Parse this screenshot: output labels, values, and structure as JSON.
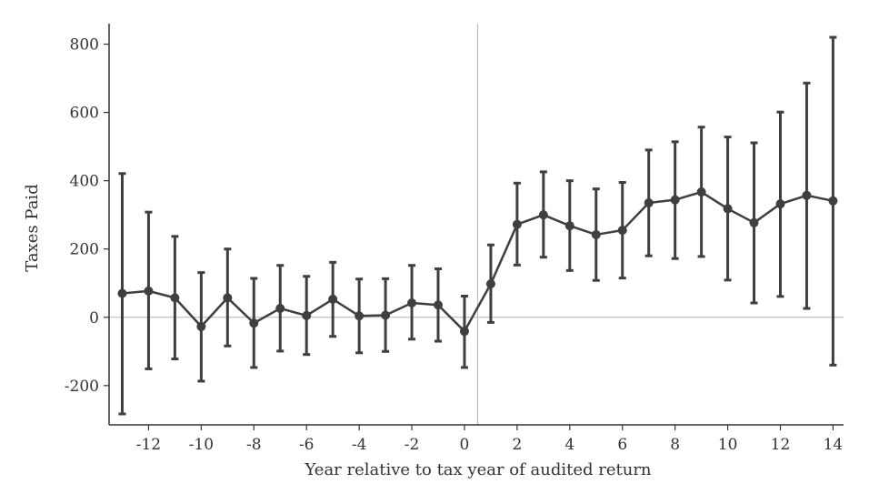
{
  "chart_data": {
    "type": "line",
    "title": "",
    "xlabel": "Year relative to tax year of audited return",
    "ylabel": "Taxes Paid",
    "xlim": [
      -13.5,
      14.4
    ],
    "ylim": [
      -315,
      860
    ],
    "x_ticks": [
      -12,
      -10,
      -8,
      -6,
      -4,
      -2,
      0,
      2,
      4,
      6,
      8,
      10,
      12,
      14
    ],
    "x_tick_labels": [
      "-12",
      "-10",
      "-8",
      "-6",
      "-4",
      "-2",
      "0",
      "2",
      "4",
      "6",
      "8",
      "10",
      "12",
      "14"
    ],
    "y_ticks": [
      -200,
      0,
      200,
      400,
      600,
      800
    ],
    "y_tick_labels": [
      "-200",
      "0",
      "200",
      "400",
      "600",
      "800"
    ],
    "reference_lines": {
      "vertical_x": 0.5,
      "horizontal_y": 0
    },
    "grid": false,
    "series": [
      {
        "x": [
          -13,
          -12,
          -11,
          -10,
          -9,
          -8,
          -7,
          -6,
          -5,
          -4,
          -3,
          -2,
          -1,
          0,
          1,
          2,
          3,
          4,
          5,
          6,
          7,
          8,
          9,
          10,
          11,
          12,
          13,
          14
        ],
        "values": [
          70,
          77,
          57,
          -27,
          57,
          -17,
          26,
          5,
          53,
          4,
          6,
          42,
          36,
          -41,
          98,
          272,
          300,
          268,
          242,
          255,
          335,
          344,
          367,
          318,
          277,
          332,
          357,
          341
        ],
        "lower": [
          -283,
          -151,
          -122,
          -187,
          -84,
          -147,
          -99,
          -109,
          -56,
          -104,
          -100,
          -64,
          -70,
          -147,
          -15,
          153,
          176,
          137,
          108,
          115,
          180,
          172,
          178,
          109,
          42,
          61,
          26,
          -140
        ],
        "upper": [
          421,
          308,
          237,
          131,
          200,
          114,
          152,
          120,
          161,
          112,
          113,
          152,
          142,
          62,
          212,
          393,
          426,
          400,
          376,
          395,
          490,
          514,
          557,
          528,
          511,
          601,
          686,
          820
        ],
        "color": "#3f3f3f"
      }
    ]
  }
}
